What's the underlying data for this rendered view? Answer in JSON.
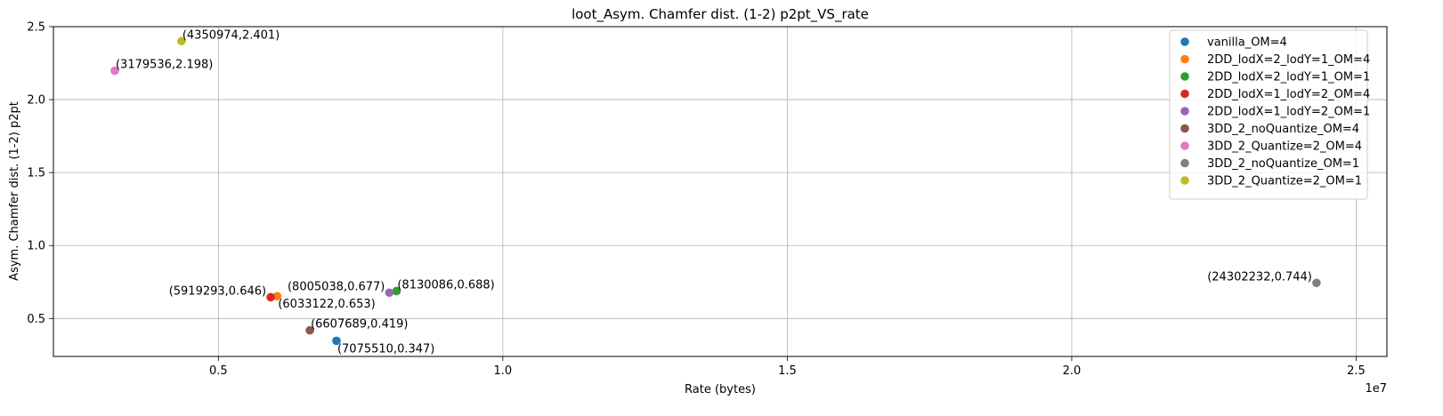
{
  "chart_data": {
    "type": "scatter",
    "title": "loot_Asym. Chamfer dist. (1-2) p2pt_VS_rate",
    "xlabel": "Rate (bytes)",
    "ylabel": "Asym. Chamfer dist. (1-2) p2pt",
    "x_offset_label": "1e7",
    "xlim": [
      2100000,
      25540000
    ],
    "ylim": [
      0.24,
      2.5
    ],
    "grid": true,
    "legend_position": "top-right",
    "x_ticks": [
      {
        "value": 5000000,
        "label": "0.5"
      },
      {
        "value": 10000000,
        "label": "1.0"
      },
      {
        "value": 15000000,
        "label": "1.5"
      },
      {
        "value": 20000000,
        "label": "2.0"
      },
      {
        "value": 25000000,
        "label": "2.5"
      }
    ],
    "y_ticks": [
      {
        "value": 0.5,
        "label": "0.5"
      },
      {
        "value": 1.0,
        "label": "1.0"
      },
      {
        "value": 1.5,
        "label": "1.5"
      },
      {
        "value": 2.0,
        "label": "2.0"
      },
      {
        "value": 2.5,
        "label": "2.5"
      }
    ],
    "series": [
      {
        "name": "vanilla_OM=4",
        "color": "#1f77b4",
        "x": 7075510,
        "y": 0.347,
        "label": "(7075510,0.347)",
        "label_pos": "below-right"
      },
      {
        "name": "2DD_lodX=2_lodY=1_OM=4",
        "color": "#ff7f0e",
        "x": 6033122,
        "y": 0.653,
        "label": "(6033122,0.653)",
        "label_pos": "below-right"
      },
      {
        "name": "2DD_lodX=2_lodY=1_OM=1",
        "color": "#2ca02c",
        "x": 8130086,
        "y": 0.688,
        "label": "(8130086,0.688)",
        "label_pos": "above-right"
      },
      {
        "name": "2DD_lodX=1_lodY=2_OM=4",
        "color": "#d62728",
        "x": 5919293,
        "y": 0.646,
        "label": "(5919293,0.646)",
        "label_pos": "above-left"
      },
      {
        "name": "2DD_lodX=1_lodY=2_OM=1",
        "color": "#9467bd",
        "x": 8005038,
        "y": 0.677,
        "label": "(8005038,0.677)",
        "label_pos": "above-left"
      },
      {
        "name": "3DD_2_noQuantize_OM=4",
        "color": "#8c564b",
        "x": 6607689,
        "y": 0.419,
        "label": "(6607689,0.419)",
        "label_pos": "above-right"
      },
      {
        "name": "3DD_2_Quantize=2_OM=4",
        "color": "#e377c2",
        "x": 3179536,
        "y": 2.198,
        "label": "(3179536,2.198)",
        "label_pos": "above-right"
      },
      {
        "name": "3DD_2_noQuantize_OM=1",
        "color": "#7f7f7f",
        "x": 24302232,
        "y": 0.744,
        "label": "(24302232,0.744)",
        "label_pos": "above-left"
      },
      {
        "name": "3DD_2_Quantize=2_OM=1",
        "color": "#bcbd22",
        "x": 4350974,
        "y": 2.401,
        "label": "(4350974,2.401)",
        "label_pos": "above-right"
      }
    ]
  }
}
